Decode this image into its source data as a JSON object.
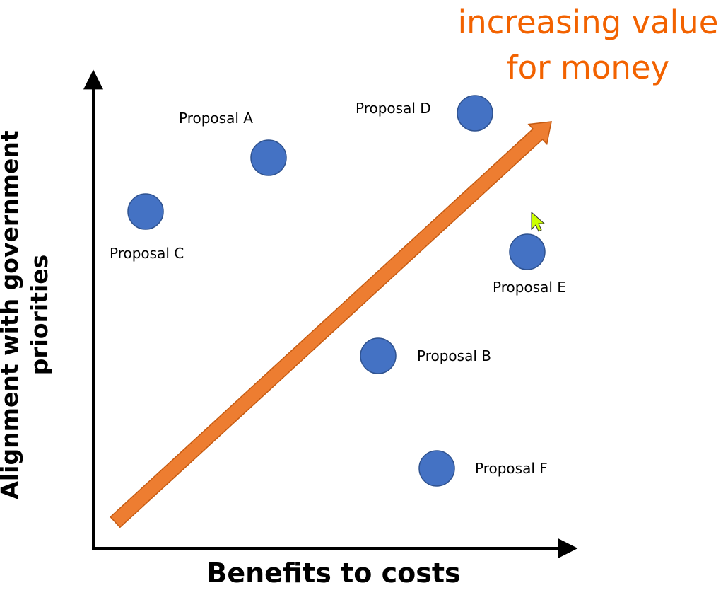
{
  "title": {
    "line1": "increasing value",
    "line2": "for money",
    "color": "#F26200"
  },
  "axes": {
    "x_label": "Benefits to costs",
    "y_label_line1": "Alignment with government",
    "y_label_line2": "priorities"
  },
  "colors": {
    "point": "#4472C4",
    "point_outline": "#2F528F",
    "arrow": "#ED7D31",
    "arrow_outline": "#C55A11",
    "cursor": "#CCFF00"
  },
  "proposals": [
    {
      "id": "A",
      "label": "Proposal A"
    },
    {
      "id": "B",
      "label": "Proposal B"
    },
    {
      "id": "C",
      "label": "Proposal C"
    },
    {
      "id": "D",
      "label": "Proposal D"
    },
    {
      "id": "E",
      "label": "Proposal E"
    },
    {
      "id": "F",
      "label": "Proposal F"
    }
  ],
  "icons": {
    "cursor": "mouse-pointer-arrow"
  }
}
